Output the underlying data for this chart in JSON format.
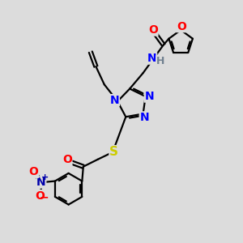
{
  "bg_color": "#dcdcdc",
  "bond_color": "#000000",
  "bond_width": 1.6,
  "atom_colors": {
    "N": "#0000ff",
    "O": "#ff0000",
    "S": "#cccc00",
    "H": "#708090",
    "C": "#000000"
  },
  "font_size": 9,
  "fig_size": [
    3.0,
    3.0
  ],
  "dpi": 100
}
